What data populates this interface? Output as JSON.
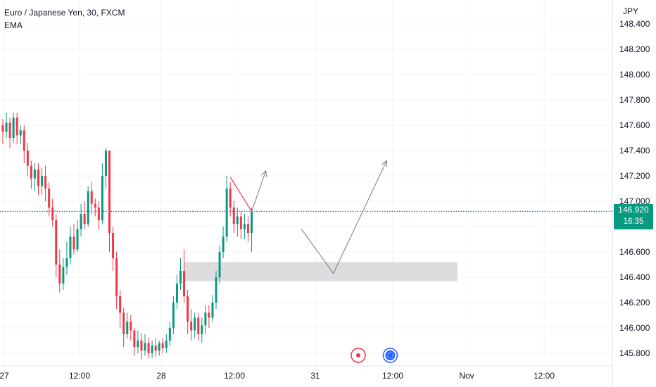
{
  "header": {
    "title": "Euro / Japanese Yen, 30, FXCM",
    "indicator": "EMA"
  },
  "currency": "JPY",
  "price_tag": {
    "price": "146.920",
    "countdown": "16:35",
    "color": "#089981"
  },
  "colors": {
    "up": "#089981",
    "down": "#f23645",
    "zone": "#d9d9dc",
    "current_line": "#2962ff"
  },
  "chart_data": {
    "type": "candlestick",
    "symbol": "EURJPY",
    "timeframe": "30",
    "ylim": [
      145.75,
      148.55
    ],
    "yticks": [
      "148.400",
      "148.200",
      "148.000",
      "147.800",
      "147.600",
      "147.400",
      "147.200",
      "147.000",
      "146.800",
      "146.600",
      "146.400",
      "146.200",
      "146.000",
      "145.800"
    ],
    "xticks": [
      "27",
      "12:00",
      "28",
      "12:00",
      "31",
      "12:00",
      "Nov",
      "12:00"
    ],
    "current_price": 146.92,
    "candles": [
      [
        147.6,
        147.55,
        147.65,
        147.45
      ],
      [
        147.55,
        147.62,
        147.7,
        147.5
      ],
      [
        147.62,
        147.5,
        147.66,
        147.42
      ],
      [
        147.5,
        147.66,
        147.7,
        147.46
      ],
      [
        147.66,
        147.52,
        147.7,
        147.45
      ],
      [
        147.52,
        147.56,
        147.6,
        147.45
      ],
      [
        147.56,
        147.4,
        147.6,
        147.3
      ],
      [
        147.4,
        147.28,
        147.46,
        147.2
      ],
      [
        147.28,
        147.18,
        147.32,
        147.1
      ],
      [
        147.18,
        147.25,
        147.3,
        147.08
      ],
      [
        147.25,
        147.12,
        147.3,
        147.05
      ],
      [
        147.12,
        147.2,
        147.26,
        147.05
      ],
      [
        147.2,
        147.1,
        147.28,
        147.0
      ],
      [
        147.1,
        146.95,
        147.15,
        146.88
      ],
      [
        146.95,
        146.85,
        147.02,
        146.8
      ],
      [
        146.85,
        146.5,
        146.9,
        146.4
      ],
      [
        146.5,
        146.35,
        146.62,
        146.28
      ],
      [
        146.35,
        146.48,
        146.55,
        146.3
      ],
      [
        146.48,
        146.55,
        146.68,
        146.42
      ],
      [
        146.55,
        146.72,
        146.8,
        146.5
      ],
      [
        146.72,
        146.62,
        146.82,
        146.58
      ],
      [
        146.62,
        146.78,
        146.85,
        146.6
      ],
      [
        146.78,
        146.9,
        146.98,
        146.72
      ],
      [
        146.9,
        146.82,
        147.0,
        146.78
      ],
      [
        146.82,
        147.08,
        147.12,
        146.8
      ],
      [
        147.08,
        146.98,
        147.15,
        146.9
      ],
      [
        146.98,
        146.95,
        147.02,
        146.88
      ],
      [
        146.95,
        146.85,
        147.0,
        146.78
      ],
      [
        146.85,
        147.2,
        147.3,
        146.82
      ],
      [
        147.2,
        147.4,
        147.42,
        147.1
      ],
      [
        147.4,
        146.75,
        147.38,
        146.6
      ],
      [
        146.75,
        146.55,
        146.8,
        146.45
      ],
      [
        146.55,
        146.25,
        146.6,
        146.15
      ],
      [
        146.25,
        146.12,
        146.3,
        146.0
      ],
      [
        146.12,
        145.95,
        146.16,
        145.85
      ],
      [
        145.95,
        146.05,
        146.12,
        145.92
      ],
      [
        146.05,
        145.98,
        146.1,
        145.9
      ],
      [
        145.98,
        145.85,
        146.0,
        145.78
      ],
      [
        145.85,
        145.9,
        145.98,
        145.8
      ],
      [
        145.9,
        145.82,
        145.96,
        145.75
      ],
      [
        145.82,
        145.88,
        145.95,
        145.78
      ],
      [
        145.88,
        145.8,
        145.92,
        145.76
      ],
      [
        145.8,
        145.86,
        145.9,
        145.76
      ],
      [
        145.86,
        145.82,
        145.92,
        145.77
      ],
      [
        145.82,
        145.88,
        145.9,
        145.78
      ],
      [
        145.88,
        145.84,
        145.92,
        145.8
      ],
      [
        145.84,
        145.9,
        145.95,
        145.8
      ],
      [
        145.9,
        146.0,
        146.05,
        145.86
      ],
      [
        146.0,
        146.2,
        146.25,
        145.95
      ],
      [
        146.2,
        146.35,
        146.42,
        146.15
      ],
      [
        146.35,
        146.45,
        146.55,
        146.3
      ],
      [
        146.45,
        146.25,
        146.62,
        146.2
      ],
      [
        146.25,
        146.05,
        146.3,
        145.95
      ],
      [
        146.05,
        145.98,
        146.15,
        145.9
      ],
      [
        145.98,
        146.08,
        146.12,
        145.92
      ],
      [
        146.08,
        145.95,
        146.12,
        145.9
      ],
      [
        145.95,
        146.02,
        146.08,
        145.88
      ],
      [
        146.02,
        146.12,
        146.18,
        145.95
      ],
      [
        146.12,
        146.08,
        146.18,
        146.0
      ],
      [
        146.08,
        146.2,
        146.26,
        146.05
      ],
      [
        146.2,
        146.4,
        146.45,
        146.15
      ],
      [
        146.4,
        146.6,
        146.65,
        146.35
      ],
      [
        146.6,
        146.72,
        146.8,
        146.55
      ],
      [
        146.72,
        147.1,
        147.2,
        146.68
      ],
      [
        147.1,
        146.95,
        147.15,
        146.88
      ],
      [
        146.95,
        146.82,
        147.0,
        146.75
      ],
      [
        146.82,
        146.88,
        146.95,
        146.72
      ],
      [
        146.88,
        146.78,
        146.92,
        146.7
      ],
      [
        146.78,
        146.82,
        146.9,
        146.7
      ],
      [
        146.82,
        146.75,
        146.88,
        146.68
      ],
      [
        146.75,
        146.92,
        146.95,
        146.6
      ]
    ],
    "zone": {
      "x_start_index": 52,
      "x_end_index": 130,
      "y_low": 146.37,
      "y_high": 146.52
    },
    "red_line": {
      "from": [
        64,
        147.19
      ],
      "to": [
        70,
        146.92
      ]
    },
    "arrows": [
      {
        "points": [
          [
            70,
            146.92
          ],
          [
            74,
            147.24
          ]
        ]
      },
      {
        "points": [
          [
            84,
            146.78
          ],
          [
            93,
            146.43
          ],
          [
            108,
            147.32
          ]
        ]
      }
    ],
    "events": [
      {
        "type": "economic",
        "color": "#f23645",
        "x_index": 100
      },
      {
        "type": "earnings",
        "color": "#2962ff",
        "x_index": 109
      }
    ]
  }
}
